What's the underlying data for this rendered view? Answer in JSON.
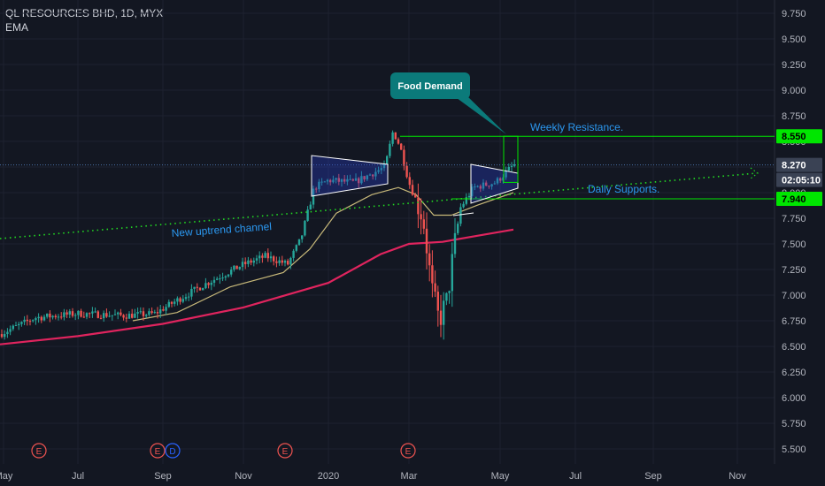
{
  "header": {
    "title": "QL RESOURCES BHD, 1D, MYX",
    "indicator": "EMA"
  },
  "chart_data": {
    "type": "candlestick",
    "symbol": "QL RESOURCES BHD",
    "interval": "1D",
    "exchange": "MYX",
    "indicator": "EMA",
    "ylim": [
      5.4,
      9.8
    ],
    "y_ticks": [
      "9.750",
      "9.500",
      "9.250",
      "9.000",
      "8.750",
      "8.500",
      "8.250",
      "8.000",
      "7.750",
      "7.500",
      "7.250",
      "7.000",
      "6.750",
      "6.500",
      "6.250",
      "6.000",
      "5.750",
      "5.500"
    ],
    "x_ticks": [
      "May",
      "Jul",
      "Sep",
      "Nov",
      "2020",
      "Mar",
      "May",
      "Jul",
      "Sep",
      "Nov"
    ],
    "price_labels": [
      {
        "text": "8.550",
        "value": 8.55,
        "color": "#00e600",
        "fg": "#000000"
      },
      {
        "text": "8.270",
        "value": 8.27,
        "color": "#3a4254",
        "fg": "#ffffff"
      },
      {
        "text": "02:05:10",
        "value": 8.1,
        "color": "#3a4254",
        "fg": "#ffffff"
      },
      {
        "text": "7.940",
        "value": 7.94,
        "color": "#00e600",
        "fg": "#000000"
      }
    ],
    "horizontal_levels": [
      {
        "name": "Weekly Resistance.",
        "value": 8.55,
        "color": "#00e600"
      },
      {
        "name": "Daily Supports.",
        "value": 7.94,
        "color": "#00e600"
      }
    ],
    "annotations": [
      {
        "text": "Food Demand",
        "kind": "callout"
      },
      {
        "text": "Weekly Resistance.",
        "kind": "label"
      },
      {
        "text": "Daily Supports.",
        "kind": "label"
      },
      {
        "text": "New uptrend channel",
        "kind": "label"
      }
    ],
    "events": [
      "E",
      "E",
      "D",
      "E",
      "E"
    ],
    "price_path": [
      [
        "May",
        6.62
      ],
      [
        "Jul",
        6.78
      ],
      [
        "Sep",
        6.82
      ],
      [
        "Oct",
        7.1
      ],
      [
        "Nov",
        7.3
      ],
      [
        "Dec",
        7.55
      ],
      [
        "2020",
        8.1
      ],
      [
        "Feb",
        8.55
      ],
      [
        "Mar",
        7.8
      ],
      [
        "Mar",
        6.72
      ],
      [
        "Apr",
        7.8
      ],
      [
        "May",
        8.18
      ],
      [
        "May",
        8.27
      ]
    ],
    "ema_slow": [
      [
        "May",
        6.52
      ],
      [
        "Jul",
        6.62
      ],
      [
        "Sep",
        6.72
      ],
      [
        "Nov",
        6.9
      ],
      [
        "2020",
        7.15
      ],
      [
        "Mar",
        7.48
      ],
      [
        "May",
        7.65
      ]
    ],
    "ema_fast": [
      [
        "Oct",
        6.8
      ],
      [
        "Nov",
        7.2
      ],
      [
        "2020",
        7.8
      ],
      [
        "Feb",
        8.05
      ],
      [
        "Mar",
        7.75
      ],
      [
        "Apr",
        7.85
      ],
      [
        "May",
        8.0
      ]
    ]
  }
}
